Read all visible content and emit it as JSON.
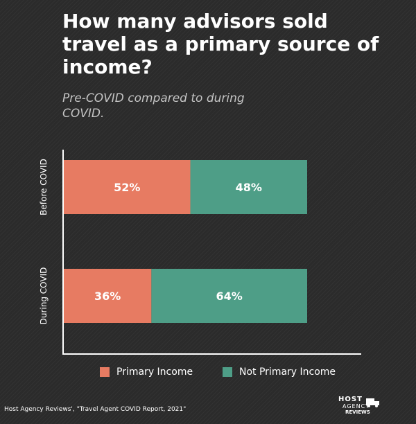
{
  "title": "How many advisors sold travel as a primary source of income?",
  "subtitle": "Pre-COVID compared to during COVID.",
  "source": "Host Agency Reviews', \"Travel Agent COVID Report, 2021\"",
  "logo": {
    "line1": "HOST",
    "line2": "AGENCY",
    "line3": "REVIEWS"
  },
  "colors": {
    "primary": "#e77b62",
    "not_primary": "#4e9e87",
    "axis": "#ffffff"
  },
  "chart_data": {
    "type": "bar",
    "orientation": "horizontal",
    "stacked": true,
    "categories": [
      "Before COVID",
      "During COVID"
    ],
    "series": [
      {
        "name": "Primary Income",
        "values": [
          52,
          36
        ],
        "color": "#e77b62"
      },
      {
        "name": "Not Primary Income",
        "values": [
          48,
          64
        ],
        "color": "#4e9e87"
      }
    ],
    "labels": [
      [
        "52%",
        "48%"
      ],
      [
        "36%",
        "64%"
      ]
    ],
    "xlim": [
      0,
      100
    ],
    "grid": false,
    "legend_position": "bottom"
  }
}
